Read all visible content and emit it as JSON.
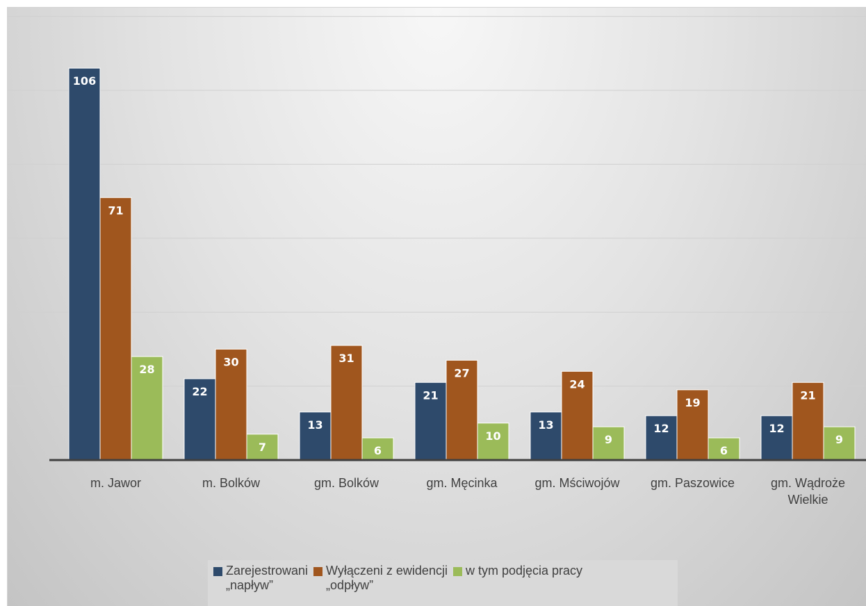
{
  "chart_data": {
    "type": "bar",
    "categories": [
      "m. Jawor",
      "m. Bolków",
      "gm. Bolków",
      "gm. Męcinka",
      "gm. Mściwojów",
      "gm. Paszowice",
      "gm. Wądroże Wielkie"
    ],
    "series": [
      {
        "name": "Zarejestrowani „napływ”",
        "legend_text": "Zarejestrowani\n„napływ”",
        "color": "#2e4a6b",
        "values": [
          106,
          22,
          13,
          21,
          13,
          12,
          12
        ]
      },
      {
        "name": "Wyłączeni z ewidencji „odpływ”",
        "legend_text": "Wyłączeni z ewidencji\n„odpływ”",
        "color": "#a0561e",
        "values": [
          71,
          30,
          31,
          27,
          24,
          19,
          21
        ]
      },
      {
        "name": "w tym  podjęcia pracy",
        "legend_text": "w tym  podjęcia pracy",
        "color": "#9bbb59",
        "values": [
          28,
          7,
          6,
          10,
          9,
          6,
          9
        ]
      }
    ],
    "title": "",
    "xlabel": "",
    "ylabel": "",
    "ylim": [
      0,
      120
    ],
    "grid": true,
    "legend_position": "bottom"
  }
}
